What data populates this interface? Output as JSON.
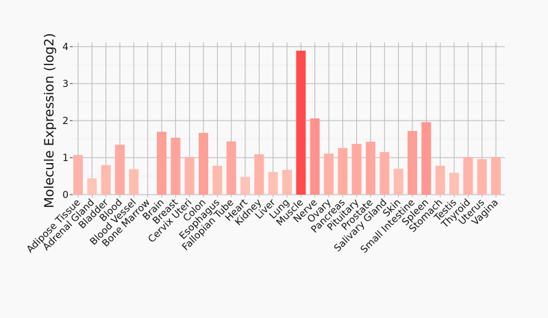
{
  "chart_data": {
    "type": "bar",
    "title": "",
    "xlabel": "",
    "ylabel": "Molecule Expression (log2)",
    "ylim": [
      0,
      4
    ],
    "yticks": [
      "0",
      "1",
      "2",
      "3",
      "4"
    ],
    "grid": true,
    "categories": [
      "Adipose Tissue",
      "Adrenal Gland",
      "Bladder",
      "Blood",
      "Blood Vessel",
      "Bone Marrow",
      "Brain",
      "Breast",
      "Cervix Uteri",
      "Colon",
      "Esophagus",
      "Fallopian Tube",
      "Heart",
      "Kidney",
      "Liver",
      "Lung",
      "Muscle",
      "Nerve",
      "Ovary",
      "Pancreas",
      "Pituitary",
      "Prostate",
      "Salivary Gland",
      "Skin",
      "Small Intestine",
      "Spleen",
      "Stomach",
      "Testis",
      "Thyroid",
      "Uterus",
      "Vagina"
    ],
    "values": [
      1.07,
      0.44,
      0.8,
      1.35,
      0.69,
      0,
      1.7,
      1.54,
      1.02,
      1.67,
      0.78,
      1.44,
      0.48,
      1.09,
      0.61,
      0.67,
      3.89,
      2.06,
      1.11,
      1.26,
      1.37,
      1.43,
      1.15,
      0.7,
      1.72,
      1.96,
      0.78,
      0.59,
      1.02,
      0.96,
      1.02
    ],
    "colors": {
      "low": "#ffcabe",
      "high": "#ff4b4b",
      "grid": "#b4b4b4"
    }
  }
}
